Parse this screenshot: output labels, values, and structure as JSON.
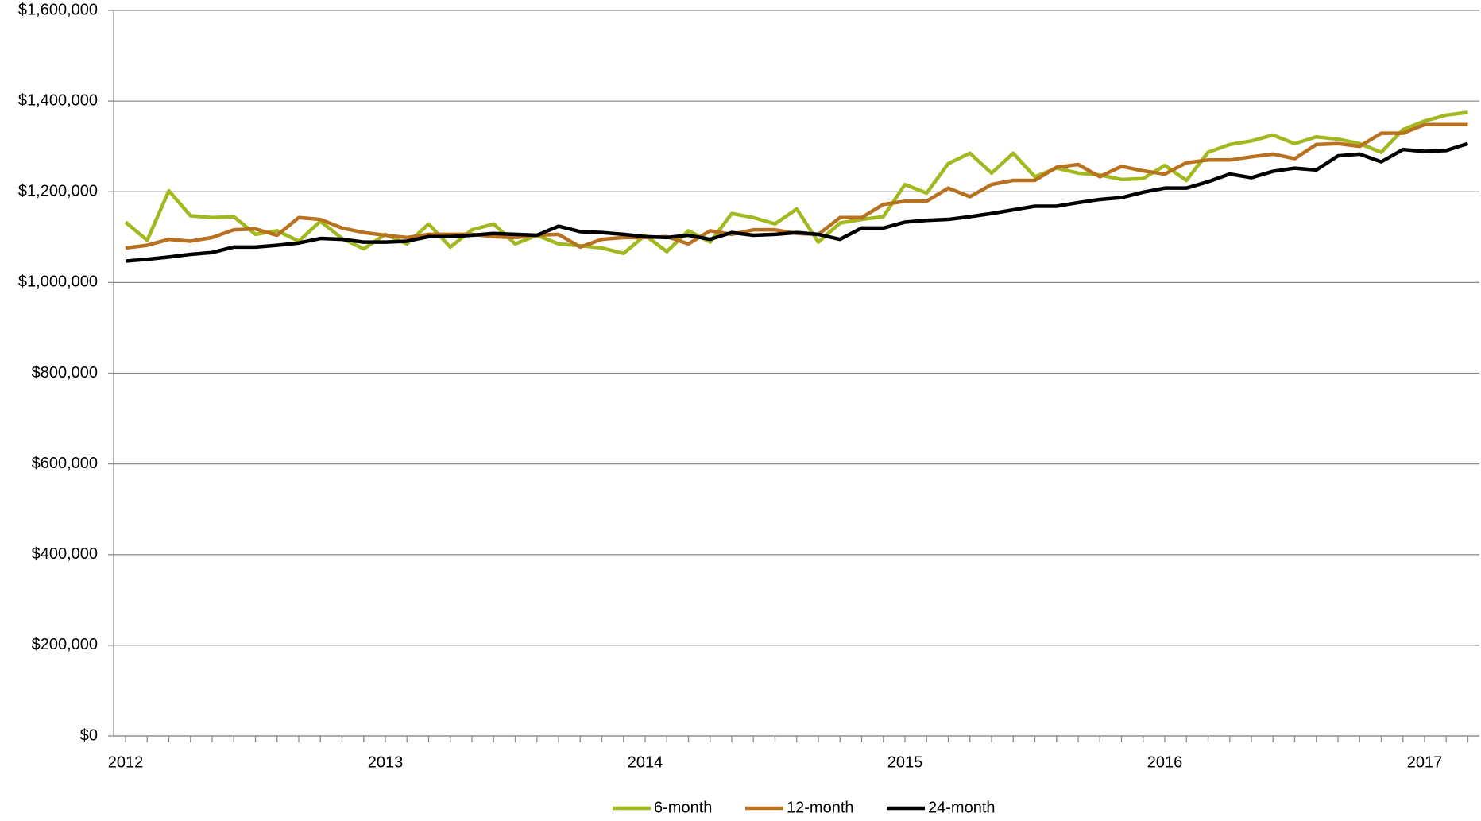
{
  "chart_data": {
    "type": "line",
    "categories": [
      "2012",
      null,
      null,
      null,
      null,
      null,
      null,
      null,
      null,
      null,
      null,
      null,
      "2013",
      null,
      null,
      null,
      null,
      null,
      null,
      null,
      null,
      null,
      null,
      null,
      "2014",
      null,
      null,
      null,
      null,
      null,
      null,
      null,
      null,
      null,
      null,
      null,
      "2015",
      null,
      null,
      null,
      null,
      null,
      null,
      null,
      null,
      null,
      null,
      null,
      "2016",
      null,
      null,
      null,
      null,
      null,
      null,
      null,
      null,
      null,
      null,
      null,
      "2017",
      null,
      null
    ],
    "series": [
      {
        "name": "6-month",
        "color": "#a3b81e",
        "values": [
          1133000,
          1093000,
          1202000,
          1147000,
          1143000,
          1145000,
          1106000,
          1114000,
          1091000,
          1135000,
          1097000,
          1074000,
          1106000,
          1085000,
          1129000,
          1078000,
          1116000,
          1129000,
          1085000,
          1104000,
          1085000,
          1081000,
          1076000,
          1064000,
          1104000,
          1068000,
          1114000,
          1089000,
          1152000,
          1143000,
          1129000,
          1162000,
          1089000,
          1131000,
          1139000,
          1145000,
          1216000,
          1197000,
          1262000,
          1285000,
          1241000,
          1285000,
          1233000,
          1252000,
          1241000,
          1237000,
          1227000,
          1229000,
          1258000,
          1225000,
          1287000,
          1304000,
          1312000,
          1325000,
          1306000,
          1321000,
          1316000,
          1306000,
          1287000,
          1337000,
          1356000,
          1369000,
          1375000
        ]
      },
      {
        "name": "12-month",
        "color": "#b8711e",
        "values": [
          1076000,
          1082000,
          1095000,
          1091000,
          1099000,
          1116000,
          1118000,
          1104000,
          1143000,
          1139000,
          1120000,
          1110000,
          1104000,
          1099000,
          1106000,
          1106000,
          1106000,
          1101000,
          1099000,
          1104000,
          1106000,
          1078000,
          1095000,
          1099000,
          1099000,
          1101000,
          1085000,
          1114000,
          1106000,
          1116000,
          1116000,
          1108000,
          1106000,
          1143000,
          1143000,
          1172000,
          1179000,
          1179000,
          1208000,
          1189000,
          1216000,
          1225000,
          1225000,
          1254000,
          1260000,
          1233000,
          1256000,
          1246000,
          1239000,
          1264000,
          1270000,
          1270000,
          1277000,
          1283000,
          1273000,
          1304000,
          1306000,
          1300000,
          1329000,
          1329000,
          1348000,
          1348000,
          1348000
        ]
      },
      {
        "name": "24-month",
        "color": "#000000",
        "values": [
          1047000,
          1051000,
          1056000,
          1062000,
          1066000,
          1078000,
          1078000,
          1082000,
          1087000,
          1097000,
          1095000,
          1089000,
          1089000,
          1091000,
          1101000,
          1101000,
          1104000,
          1108000,
          1106000,
          1104000,
          1124000,
          1112000,
          1110000,
          1106000,
          1101000,
          1099000,
          1104000,
          1095000,
          1110000,
          1104000,
          1106000,
          1110000,
          1106000,
          1095000,
          1120000,
          1120000,
          1133000,
          1137000,
          1139000,
          1145000,
          1152000,
          1160000,
          1168000,
          1168000,
          1176000,
          1183000,
          1187000,
          1199000,
          1208000,
          1208000,
          1222000,
          1239000,
          1231000,
          1245000,
          1252000,
          1248000,
          1279000,
          1283000,
          1266000,
          1293000,
          1289000,
          1291000,
          1306000
        ]
      }
    ],
    "ylim": [
      0,
      1600000
    ],
    "yticks": [
      {
        "value": 0,
        "label": "$0"
      },
      {
        "value": 200000,
        "label": "$200,000"
      },
      {
        "value": 400000,
        "label": "$400,000"
      },
      {
        "value": 600000,
        "label": "$600,000"
      },
      {
        "value": 800000,
        "label": "$800,000"
      },
      {
        "value": 1000000,
        "label": "$1,000,000"
      },
      {
        "value": 1200000,
        "label": "$1,200,000"
      },
      {
        "value": 1400000,
        "label": "$1,400,000"
      },
      {
        "value": 1600000,
        "label": "$1,600,000"
      }
    ],
    "grid": true,
    "legend": "bottom"
  }
}
